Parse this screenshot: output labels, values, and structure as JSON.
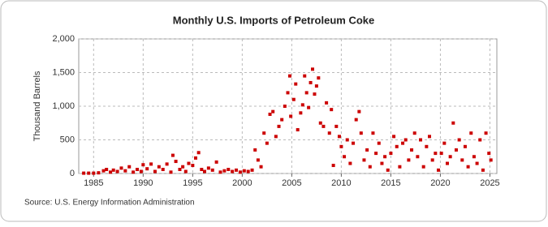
{
  "chart_data": {
    "type": "scatter",
    "title": "Monthly U.S. Imports of Petroleum Coke",
    "y_label": "Thousand Barrels",
    "source": "Source: U.S. Energy Information Administration",
    "color": "#cc0000",
    "grid": true,
    "xlim": [
      1983.5,
      2025.7
    ],
    "xticks": [
      1985,
      1990,
      1995,
      2000,
      2005,
      2010,
      2015,
      2020,
      2025
    ],
    "ylim": [
      0,
      2000
    ],
    "yticks": [
      0,
      500,
      {
        "value": 1000,
        "label": "1,000"
      },
      {
        "value": 1500,
        "label": "1,500"
      },
      {
        "value": 2000,
        "label": "2,000"
      }
    ],
    "x": [
      1984.0,
      1984.5,
      1985.0,
      1985.5,
      1986.0,
      1986.3,
      1986.7,
      1987.0,
      1987.4,
      1987.8,
      1988.2,
      1988.6,
      1989.0,
      1989.4,
      1989.8,
      1990.0,
      1990.4,
      1990.8,
      1991.2,
      1991.6,
      1992.0,
      1992.4,
      1992.8,
      1993.0,
      1993.3,
      1993.7,
      1994.0,
      1994.3,
      1994.6,
      1995.0,
      1995.3,
      1995.6,
      1995.9,
      1996.2,
      1996.6,
      1997.0,
      1997.4,
      1997.8,
      1998.2,
      1998.6,
      1999.0,
      1999.4,
      1999.8,
      2000.2,
      2000.6,
      2001.0,
      2001.3,
      2001.6,
      2001.9,
      2002.2,
      2002.5,
      2002.8,
      2003.1,
      2003.4,
      2003.7,
      2004.0,
      2004.3,
      2004.6,
      2004.8,
      2004.9,
      2005.2,
      2005.4,
      2005.6,
      2005.9,
      2006.1,
      2006.3,
      2006.5,
      2006.7,
      2006.9,
      2007.1,
      2007.3,
      2007.5,
      2007.7,
      2007.9,
      2008.2,
      2008.5,
      2008.8,
      2009.0,
      2009.2,
      2009.5,
      2009.8,
      2010.0,
      2010.3,
      2010.6,
      2010.9,
      2011.2,
      2011.5,
      2011.8,
      2012.0,
      2012.3,
      2012.6,
      2012.9,
      2013.2,
      2013.5,
      2013.8,
      2014.1,
      2014.4,
      2014.7,
      2015.0,
      2015.3,
      2015.6,
      2015.9,
      2016.2,
      2016.5,
      2016.8,
      2017.1,
      2017.4,
      2017.7,
      2018.0,
      2018.3,
      2018.6,
      2018.9,
      2019.2,
      2019.5,
      2019.8,
      2020.1,
      2020.4,
      2020.7,
      2021.0,
      2021.3,
      2021.6,
      2021.9,
      2022.2,
      2022.5,
      2022.8,
      2023.1,
      2023.4,
      2023.7,
      2024.0,
      2024.3,
      2024.6,
      2024.9,
      2025.1
    ],
    "values": [
      5,
      5,
      5,
      10,
      40,
      60,
      20,
      50,
      30,
      80,
      40,
      100,
      20,
      60,
      30,
      130,
      70,
      140,
      30,
      100,
      60,
      140,
      20,
      270,
      180,
      60,
      100,
      30,
      150,
      120,
      230,
      310,
      60,
      30,
      80,
      50,
      170,
      20,
      40,
      60,
      30,
      50,
      20,
      40,
      30,
      50,
      350,
      200,
      100,
      600,
      450,
      880,
      920,
      550,
      700,
      800,
      1000,
      1200,
      1450,
      850,
      1100,
      1330,
      650,
      900,
      1020,
      1450,
      1200,
      980,
      1350,
      1550,
      1180,
      1300,
      1420,
      750,
      700,
      1050,
      600,
      950,
      120,
      700,
      550,
      400,
      250,
      500,
      150,
      450,
      800,
      920,
      600,
      200,
      350,
      100,
      600,
      300,
      450,
      150,
      250,
      50,
      300,
      550,
      400,
      100,
      450,
      500,
      200,
      350,
      600,
      250,
      500,
      100,
      400,
      550,
      200,
      300,
      50,
      300,
      450,
      150,
      250,
      750,
      350,
      500,
      200,
      400,
      100,
      600,
      250,
      150,
      500,
      50,
      600,
      300,
      200
    ]
  }
}
